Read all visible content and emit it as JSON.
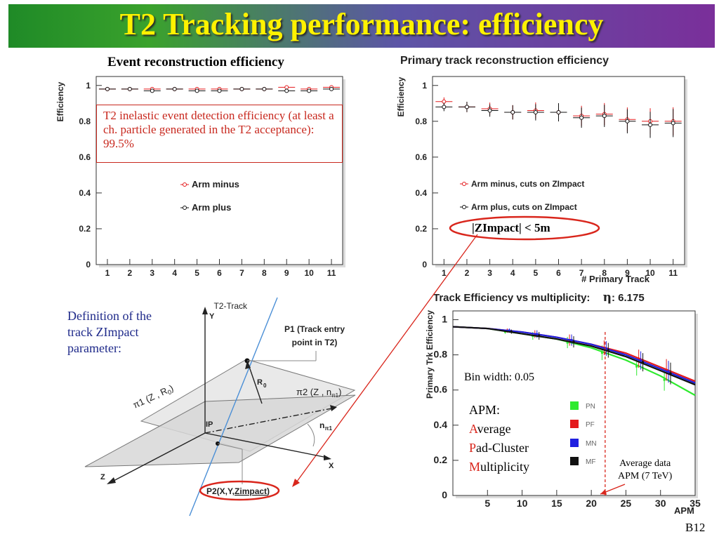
{
  "slide": {
    "title": "T2 Tracking performance: efficiency",
    "page_label": "B12"
  },
  "colors": {
    "title_text": "#fff200",
    "red": "#e41a1c",
    "green": "#2eea2e",
    "blue": "#1f1fe0",
    "black": "#111111",
    "callout_border": "#c8281e"
  },
  "panels": {
    "event": {
      "title": "Event reconstruction efficiency",
      "ylabel": "Efficiency",
      "xlabel": "",
      "callout": "T2 inelastic event detection efficiency (at least  a ch. particle generated in the T2 acceptance): 99.5%",
      "legend": [
        "Arm minus",
        "Arm plus"
      ]
    },
    "primary": {
      "title": "Primary track reconstruction efficiency",
      "ylabel": "Efficiency",
      "xlabel": "# Primary Track",
      "legend": [
        "Arm minus, cuts on ZImpact",
        "Arm plus, cuts on ZImpact"
      ],
      "cut_label": "|ZImpact| < 5m"
    },
    "mult": {
      "title": "Track Efficiency vs multiplicity:",
      "eta_symbol": "η",
      "eta_value": ": 6.175",
      "ylabel": "Primary Trk Efficiency",
      "xlabel": "APM",
      "bin_width": "Bin width:  0.05",
      "apm_title": "APM:",
      "apm_lines": [
        {
          "first": "A",
          "rest": "verage"
        },
        {
          "first": "P",
          "rest": "ad-Cluster"
        },
        {
          "first": "M",
          "rest": "ultiplicity"
        }
      ],
      "legend": [
        "PN",
        "PF",
        "MN",
        "MF"
      ],
      "avg_note_line1": "Average data",
      "avg_note_line2": "APM (7 TeV)"
    },
    "diagram": {
      "definition_text_line1": "Definition of the",
      "definition_text_line2": "track ZImpact",
      "definition_text_line3": "parameter:",
      "track_label": "T2-Track",
      "p1_line1": "P1 (Track entry",
      "p1_line2": "point in T2)",
      "y_axis": "Y",
      "x_axis": "X",
      "z_axis": "Z",
      "ip": "IP",
      "r0": "R",
      "r0_sub": "0",
      "pi1": "π1 (Z , R",
      "pi1_sub": "0",
      "pi1_end": ")",
      "pi2": "π2 (Z , n",
      "pi2_sub": "π1",
      "pi2_end": ")",
      "npi": "n",
      "npi_sub": "π1",
      "p2_a": "P2(X,Y,",
      "p2_b": "Zimpact",
      "p2_c": ")"
    }
  },
  "chart_data": [
    {
      "type": "scatter",
      "title": "Event reconstruction efficiency",
      "ylabel": "Efficiency",
      "ylim": [
        0,
        1.05
      ],
      "xlim": [
        0.5,
        11.5
      ],
      "yticks": [
        0,
        0.2,
        0.4,
        0.6,
        0.8,
        1
      ],
      "xticks": [
        1,
        2,
        3,
        4,
        5,
        6,
        7,
        8,
        9,
        10,
        11
      ],
      "series": [
        {
          "name": "Arm minus",
          "x": [
            1,
            2,
            3,
            4,
            5,
            6,
            7,
            8,
            9,
            10,
            11
          ],
          "y": [
            0.98,
            0.98,
            0.98,
            0.98,
            0.98,
            0.98,
            0.98,
            0.98,
            0.99,
            0.98,
            0.99
          ]
        },
        {
          "name": "Arm plus",
          "x": [
            1,
            2,
            3,
            4,
            5,
            6,
            7,
            8,
            9,
            10,
            11
          ],
          "y": [
            0.98,
            0.98,
            0.97,
            0.98,
            0.97,
            0.97,
            0.98,
            0.98,
            0.97,
            0.97,
            0.98
          ]
        }
      ]
    },
    {
      "type": "scatter",
      "title": "Primary track reconstruction efficiency",
      "ylabel": "Efficiency",
      "xlabel": "# Primary Track",
      "ylim": [
        0,
        1.05
      ],
      "xlim": [
        0.5,
        11.5
      ],
      "yticks": [
        0,
        0.2,
        0.4,
        0.6,
        0.8,
        1
      ],
      "xticks": [
        1,
        2,
        3,
        4,
        5,
        6,
        7,
        8,
        9,
        10,
        11
      ],
      "series": [
        {
          "name": "Arm minus, cuts on ZImpact",
          "x": [
            1,
            2,
            3,
            4,
            5,
            6,
            7,
            8,
            9,
            10,
            11
          ],
          "y": [
            0.91,
            0.88,
            0.87,
            0.85,
            0.86,
            0.85,
            0.83,
            0.84,
            0.81,
            0.8,
            0.8
          ]
        },
        {
          "name": "Arm plus, cuts on ZImpact",
          "x": [
            1,
            2,
            3,
            4,
            5,
            6,
            7,
            8,
            9,
            10,
            11
          ],
          "y": [
            0.88,
            0.88,
            0.86,
            0.85,
            0.85,
            0.85,
            0.82,
            0.83,
            0.8,
            0.78,
            0.79
          ]
        }
      ]
    },
    {
      "type": "line",
      "title": "Track Efficiency vs multiplicity:",
      "ylabel": "Primary Trk Efficiency",
      "xlabel": "APM",
      "ylim": [
        0,
        1.05
      ],
      "xlim": [
        0,
        35
      ],
      "yticks": [
        0,
        0.2,
        0.4,
        0.6,
        0.8,
        1
      ],
      "xticks": [
        5,
        10,
        15,
        20,
        25,
        30,
        35
      ],
      "vline": 22,
      "series": [
        {
          "name": "PN",
          "x": [
            0,
            5,
            10,
            15,
            20,
            25,
            30,
            35
          ],
          "y": [
            0.96,
            0.95,
            0.92,
            0.89,
            0.84,
            0.77,
            0.68,
            0.57
          ]
        },
        {
          "name": "PF",
          "x": [
            0,
            5,
            10,
            15,
            20,
            25,
            30,
            35
          ],
          "y": [
            0.96,
            0.95,
            0.93,
            0.9,
            0.86,
            0.81,
            0.73,
            0.65
          ]
        },
        {
          "name": "MN",
          "x": [
            0,
            5,
            10,
            15,
            20,
            25,
            30,
            35
          ],
          "y": [
            0.96,
            0.95,
            0.93,
            0.9,
            0.86,
            0.8,
            0.72,
            0.64
          ]
        },
        {
          "name": "MF",
          "x": [
            0,
            5,
            10,
            15,
            20,
            25,
            30,
            35
          ],
          "y": [
            0.96,
            0.95,
            0.92,
            0.89,
            0.85,
            0.79,
            0.71,
            0.63
          ]
        }
      ]
    }
  ]
}
